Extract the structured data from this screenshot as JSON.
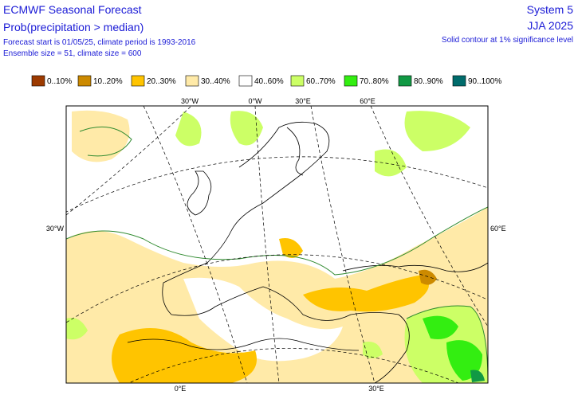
{
  "header": {
    "title": "ECMWF Seasonal Forecast",
    "subtitle": "Prob(precipitation > median)",
    "info": [
      "Forecast start is 01/05/25, climate period is 1993-2016",
      "Ensemble size = 51, climate size = 600"
    ],
    "system": "System 5",
    "season": "JJA 2025",
    "note": "Solid contour at 1% significance level"
  },
  "legend": [
    {
      "label": "0..10%",
      "color": "#9c3a00"
    },
    {
      "label": "10..20%",
      "color": "#cc8a00"
    },
    {
      "label": "20..30%",
      "color": "#ffc400"
    },
    {
      "label": "30..40%",
      "color": "#ffeaa8"
    },
    {
      "label": "40..60%",
      "color": "#ffffff"
    },
    {
      "label": "60..70%",
      "color": "#ccff66"
    },
    {
      "label": "70..80%",
      "color": "#33ee11"
    },
    {
      "label": "80..90%",
      "color": "#119944"
    },
    {
      "label": "90..100%",
      "color": "#006b6b"
    }
  ],
  "map": {
    "top_labels": [
      "30°W",
      "0°W",
      "30°E",
      "60°E"
    ],
    "left_label": "30°W",
    "right_label": "60°E",
    "bottom_labels": [
      "0°E",
      "30°E"
    ]
  }
}
